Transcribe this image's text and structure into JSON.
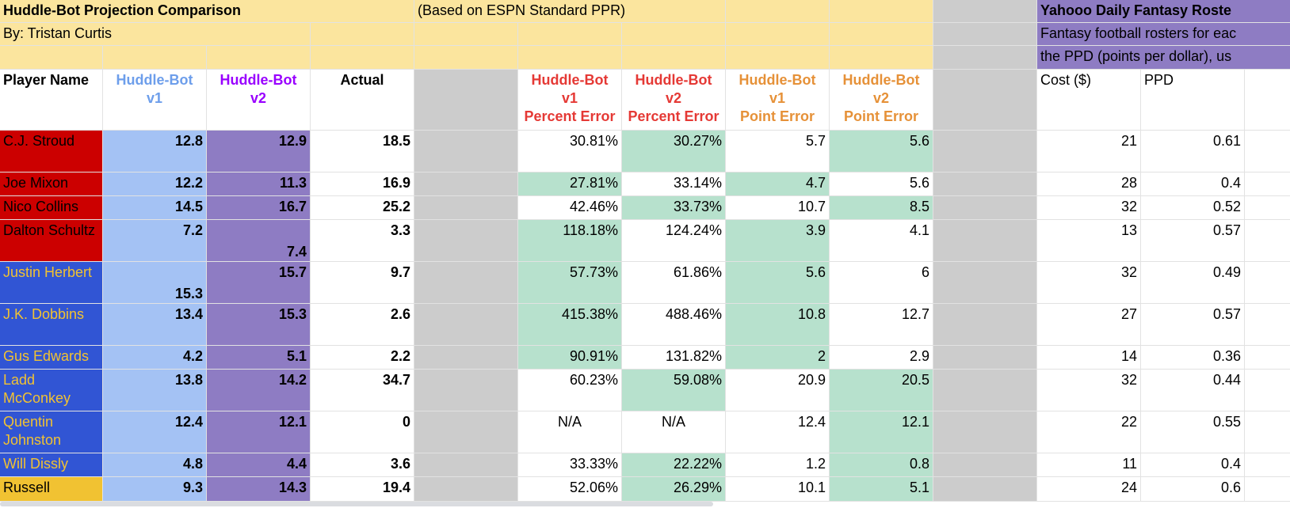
{
  "sheet": {
    "title": "Huddle-Bot Projection Comparison",
    "author": "By: Tristan Curtis",
    "note": "(Based on ESPN Standard PPR)",
    "yahoo_title": "Yahooo Daily Fantasy Roste",
    "yahoo_line1": "Fantasy football rosters for eac",
    "yahoo_line2": "the PPD (points per dollar), us"
  },
  "headers": {
    "player": "Player Name",
    "hb1": [
      "Huddle-Bot",
      "v1"
    ],
    "hb2": [
      "Huddle-Bot",
      "v2"
    ],
    "actual": "Actual",
    "pe1": [
      "Huddle-Bot",
      "v1",
      "Percent Error"
    ],
    "pe2": [
      "Huddle-Bot",
      "v2",
      "Percent Error"
    ],
    "pt1": [
      "Huddle-Bot",
      "v1",
      "Point Error"
    ],
    "pt2": [
      "Huddle-Bot",
      "v2",
      "Point Error"
    ],
    "cost": "Cost ($)",
    "ppd": "PPD"
  },
  "rows": [
    {
      "name": "C.J. Stroud",
      "v1": "12.8",
      "v2": "12.9",
      "actual": "18.5",
      "pe1": "30.81%",
      "pe2": "30.27%",
      "pt1": "5.7",
      "pt2": "5.6",
      "cost": "21",
      "ppd": "0.61"
    },
    {
      "name": "Joe Mixon",
      "v1": "12.2",
      "v2": "11.3",
      "actual": "16.9",
      "pe1": "27.81%",
      "pe2": "33.14%",
      "pt1": "4.7",
      "pt2": "5.6",
      "cost": "28",
      "ppd": "0.4"
    },
    {
      "name": "Nico Collins",
      "v1": "14.5",
      "v2": "16.7",
      "actual": "25.2",
      "pe1": "42.46%",
      "pe2": "33.73%",
      "pt1": "10.7",
      "pt2": "8.5",
      "cost": "32",
      "ppd": "0.52"
    },
    {
      "name": "Dalton Schultz",
      "v1": "7.2",
      "v2": "7.4",
      "actual": "3.3",
      "pe1": "118.18%",
      "pe2": "124.24%",
      "pt1": "3.9",
      "pt2": "4.1",
      "cost": "13",
      "ppd": "0.57"
    },
    {
      "name": "Justin Herbert",
      "v1": "15.3",
      "v2": "15.7",
      "actual": "9.7",
      "pe1": "57.73%",
      "pe2": "61.86%",
      "pt1": "5.6",
      "pt2": "6",
      "cost": "32",
      "ppd": "0.49"
    },
    {
      "name": "J.K. Dobbins",
      "v1": "13.4",
      "v2": "15.3",
      "actual": "2.6",
      "pe1": "415.38%",
      "pe2": "488.46%",
      "pt1": "10.8",
      "pt2": "12.7",
      "cost": "27",
      "ppd": "0.57"
    },
    {
      "name": "Gus Edwards",
      "v1": "4.2",
      "v2": "5.1",
      "actual": "2.2",
      "pe1": "90.91%",
      "pe2": "131.82%",
      "pt1": "2",
      "pt2": "2.9",
      "cost": "14",
      "ppd": "0.36"
    },
    {
      "name": "Ladd McConkey",
      "v1": "13.8",
      "v2": "14.2",
      "actual": "34.7",
      "pe1": "60.23%",
      "pe2": "59.08%",
      "pt1": "20.9",
      "pt2": "20.5",
      "cost": "32",
      "ppd": "0.44"
    },
    {
      "name": "Quentin Johnston",
      "v1": "12.4",
      "v2": "12.1",
      "actual": "0",
      "pe1": "N/A",
      "pe2": "N/A",
      "pt1": "12.4",
      "pt2": "12.1",
      "cost": "22",
      "ppd": "0.55"
    },
    {
      "name": "Will Dissly",
      "v1": "4.8",
      "v2": "4.4",
      "actual": "3.6",
      "pe1": "33.33%",
      "pe2": "22.22%",
      "pt1": "1.2",
      "pt2": "0.8",
      "cost": "11",
      "ppd": "0.4"
    },
    {
      "name": "Russell",
      "v1": "9.3",
      "v2": "14.3",
      "actual": "19.4",
      "pe1": "52.06%",
      "pe2": "26.29%",
      "pt1": "10.1",
      "pt2": "5.1",
      "cost": "24",
      "ppd": "0.6"
    }
  ],
  "colors": {
    "banner_yellow": "#fbe59e",
    "yahoo_purple": "#8e7cc3",
    "gray": "#cccccc",
    "houston_red": "#cc0000",
    "charger_blue": "#3155d4",
    "charger_gold": "#f1c232",
    "v1_blue": "#a4c2f4",
    "v2_purple": "#8e7cc3",
    "green": "#b7e1cd",
    "hb1_text": "#6d9eeb",
    "hb2_text": "#9900ff",
    "red_text": "#e53935",
    "orange_text": "#e69138"
  }
}
